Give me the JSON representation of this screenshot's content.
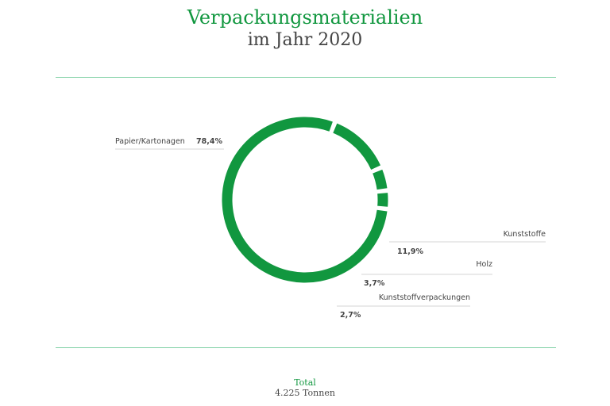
{
  "chart_data": {
    "type": "pie",
    "title": "Verpackungsmaterialien",
    "subtitle": "im Jahr 2020",
    "slices": [
      {
        "name": "Papier/Kartonagen",
        "value": 78.4,
        "value_label": "78,4%"
      },
      {
        "name": "Kunststoffe",
        "value": 11.9,
        "value_label": "11,9%"
      },
      {
        "name": "Holz",
        "value": 3.7,
        "value_label": "3,7%"
      },
      {
        "name": "Kunststoffverpackungen",
        "value": 2.7,
        "value_label": "2,7%"
      }
    ],
    "color": "#11973f",
    "total_label": "Total",
    "total_value": "4.225 Tonnen"
  }
}
